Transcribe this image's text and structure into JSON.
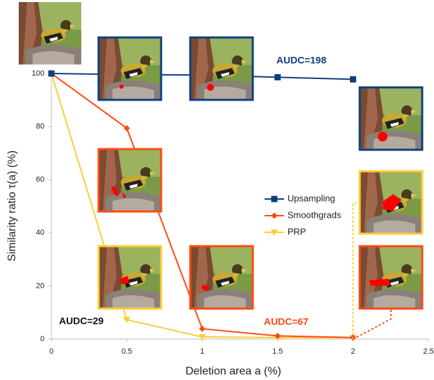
{
  "chart_data": {
    "type": "line",
    "xlabel": "Deletion area a (%)",
    "ylabel": "Similarity ratio τ(a) (%)",
    "x": [
      0,
      0.5,
      1,
      1.5,
      2
    ],
    "series": [
      {
        "name": "Upsampling",
        "color": "#0d3f7f",
        "marker": "square",
        "values": [
          100,
          99.6,
          99.4,
          98.6,
          97.8
        ]
      },
      {
        "name": "Smoothgrads",
        "color": "#ff4a10",
        "marker": "diamond",
        "values": [
          100,
          79.4,
          3.9,
          1.2,
          0.6
        ]
      },
      {
        "name": "PRP",
        "color": "#ffcc33",
        "marker": "triangle-down",
        "values": [
          100,
          7.3,
          0.8,
          0.6,
          0.5
        ]
      }
    ],
    "annotations": [
      {
        "text": "AUDC=198",
        "color": "#0d3f7f"
      },
      {
        "text": "AUDC=67",
        "color": "#ff4a10"
      },
      {
        "text": "AUDC=29",
        "color": "#111111"
      }
    ],
    "xlim": [
      0,
      2.5
    ],
    "xticks": [
      0,
      0.5,
      1,
      1.5,
      2,
      2.5
    ],
    "ylim": [
      0,
      100
    ],
    "yticks": [
      0,
      20,
      40,
      60,
      80,
      100
    ],
    "grid": false,
    "legend": "right"
  }
}
